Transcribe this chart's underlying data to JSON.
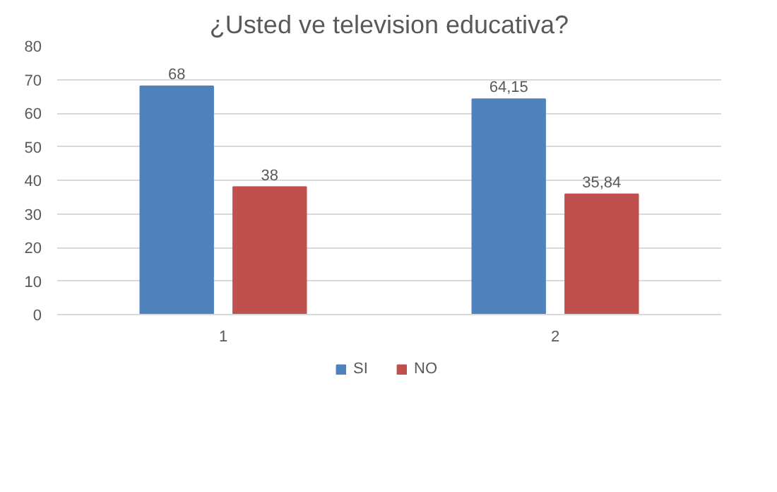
{
  "chart_data": {
    "type": "bar",
    "title": "¿Usted ve television educativa?",
    "categories": [
      "1",
      "2"
    ],
    "series": [
      {
        "name": "SI",
        "color": "#4f81bd",
        "values": [
          68,
          64.15
        ],
        "value_labels": [
          "68",
          "64,15"
        ]
      },
      {
        "name": "NO",
        "color": "#c0504d",
        "values": [
          38,
          35.84
        ],
        "value_labels": [
          "38",
          "35,84"
        ]
      }
    ],
    "ylim": [
      0,
      80
    ],
    "yticks": [
      0,
      10,
      20,
      30,
      40,
      50,
      60,
      70,
      80
    ],
    "grid": "y",
    "legend": "bottom"
  }
}
